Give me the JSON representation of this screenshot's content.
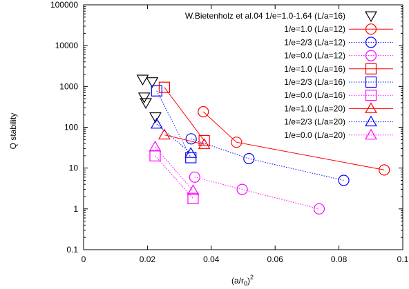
{
  "chart_data": {
    "type": "scatter",
    "title": "",
    "xlabel": "(a/r",
    "xlabel_sub": "0",
    "xlabel_tail": ")",
    "xlabel_sup": "2",
    "ylabel": "Q stability",
    "xlim": [
      0,
      0.1
    ],
    "ylim": [
      0.1,
      100000
    ],
    "yscale": "log",
    "xticks": [
      0,
      0.02,
      0.04,
      0.06,
      0.08,
      0.1
    ],
    "xtick_labels": [
      "0",
      "0.02",
      "0.04",
      "0.06",
      "0.08",
      "0.1"
    ],
    "yticks": [
      0.1,
      1,
      10,
      100,
      1000,
      10000,
      100000
    ],
    "ytick_labels": [
      "0.1",
      "1",
      "10",
      "100",
      "1000",
      "10000",
      "100000"
    ],
    "grid": false,
    "legend_position": "top-right",
    "series": [
      {
        "name": "W.Bietenholz et al.04  1/e=1.0-1.64 (L/a=16)",
        "color": "#000000",
        "marker": "triangle-down",
        "line": "none",
        "x": [
          0.0185,
          0.0215,
          0.019,
          0.0195,
          0.0225
        ],
        "y": [
          1500,
          1300,
          550,
          400,
          180
        ]
      },
      {
        "name": "1/e=1.0 (L/a=12)",
        "color": "#ff0000",
        "marker": "circle",
        "line": "solid",
        "x": [
          0.0375,
          0.0479,
          0.0942
        ],
        "y": [
          240,
          43,
          9
        ]
      },
      {
        "name": "1/e=2/3 (L/a=12)",
        "color": "#0000ff",
        "marker": "circle",
        "line": "dotted",
        "x": [
          0.0337,
          0.0518,
          0.0815
        ],
        "y": [
          52,
          17,
          5
        ]
      },
      {
        "name": "1/e=0.0 (L/a=12)",
        "color": "#ff00ff",
        "marker": "circle",
        "line": "dotted",
        "x": [
          0.0348,
          0.0497,
          0.0738
        ],
        "y": [
          6,
          3,
          1
        ]
      },
      {
        "name": "1/e=1.0 (L/a=16)",
        "color": "#ff0000",
        "marker": "square",
        "line": "solid",
        "x": [
          0.0253,
          0.0378
        ],
        "y": [
          950,
          47
        ]
      },
      {
        "name": "1/e=2/3 (L/a=16)",
        "color": "#0000ff",
        "marker": "square",
        "line": "dotted",
        "x": [
          0.0229,
          0.0336
        ],
        "y": [
          780,
          18
        ]
      },
      {
        "name": "1/e=0.0 (L/a=16)",
        "color": "#ff00ff",
        "marker": "square",
        "line": "dotted",
        "x": [
          0.0224,
          0.0343
        ],
        "y": [
          20,
          1.8
        ]
      },
      {
        "name": "1/e=1.0 (L/a=20)",
        "color": "#ff0000",
        "marker": "triangle-up",
        "line": "solid",
        "x": [
          0.0253,
          0.0378
        ],
        "y": [
          65,
          38
        ]
      },
      {
        "name": "1/e=2/3 (L/a=20)",
        "color": "#0000ff",
        "marker": "triangle-up",
        "line": "dotted",
        "x": [
          0.0229,
          0.0336
        ],
        "y": [
          120,
          23
        ]
      },
      {
        "name": "1/e=0.0 (L/a=20)",
        "color": "#ff00ff",
        "marker": "triangle-up",
        "line": "dotted",
        "x": [
          0.0224,
          0.0343
        ],
        "y": [
          33,
          2.8
        ]
      }
    ]
  }
}
